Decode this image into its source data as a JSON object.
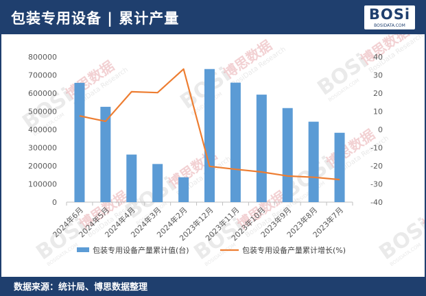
{
  "header": {
    "title": "包装专用设备 | 累计产量",
    "logo_text": "BOSi",
    "logo_sub": "BOSIDATA.COM"
  },
  "watermark": {
    "brand": "BOSi",
    "cn": "博思数据",
    "en": "BosiData Research",
    "url": "BOSIDATA.COM"
  },
  "footer": {
    "source": "数据来源：统计局、博思数据整理"
  },
  "colors": {
    "header_bg": "#1f3f6e",
    "bar": "#5b9bd5",
    "line": "#ed7d31"
  },
  "chart_data": {
    "type": "bar",
    "categories": [
      "2024年6月",
      "2024年5月",
      "2024年4月",
      "2024年3月",
      "2024年2月",
      "2023年12月",
      "2023年11月",
      "2023年10月",
      "2023年9月",
      "2023年8月",
      "2023年7月"
    ],
    "series": [
      {
        "name": "包装专用设备产量累计值(台)",
        "type": "bar",
        "axis": "left",
        "values": [
          657000,
          525000,
          262000,
          210000,
          137000,
          733000,
          658000,
          592000,
          518000,
          443000,
          382000
        ]
      },
      {
        "name": "包装专用设备产量累计增长(%)",
        "type": "line",
        "axis": "right",
        "values": [
          7.5,
          4.5,
          20.8,
          20.3,
          33.3,
          -20.3,
          -21.9,
          -23.4,
          -25.6,
          -26.3,
          -27.6
        ]
      }
    ],
    "y_left": {
      "min": 0,
      "max": 800000,
      "step": 100000,
      "ticks": [
        "0",
        "100000",
        "200000",
        "300000",
        "400000",
        "500000",
        "600000",
        "700000",
        "800000"
      ]
    },
    "y_right": {
      "min": -40,
      "max": 40,
      "step": 10,
      "ticks": [
        "-40",
        "-30",
        "-20",
        "-10",
        "0",
        "10",
        "20",
        "30",
        "40"
      ]
    },
    "grid": false,
    "legend_position": "bottom"
  }
}
